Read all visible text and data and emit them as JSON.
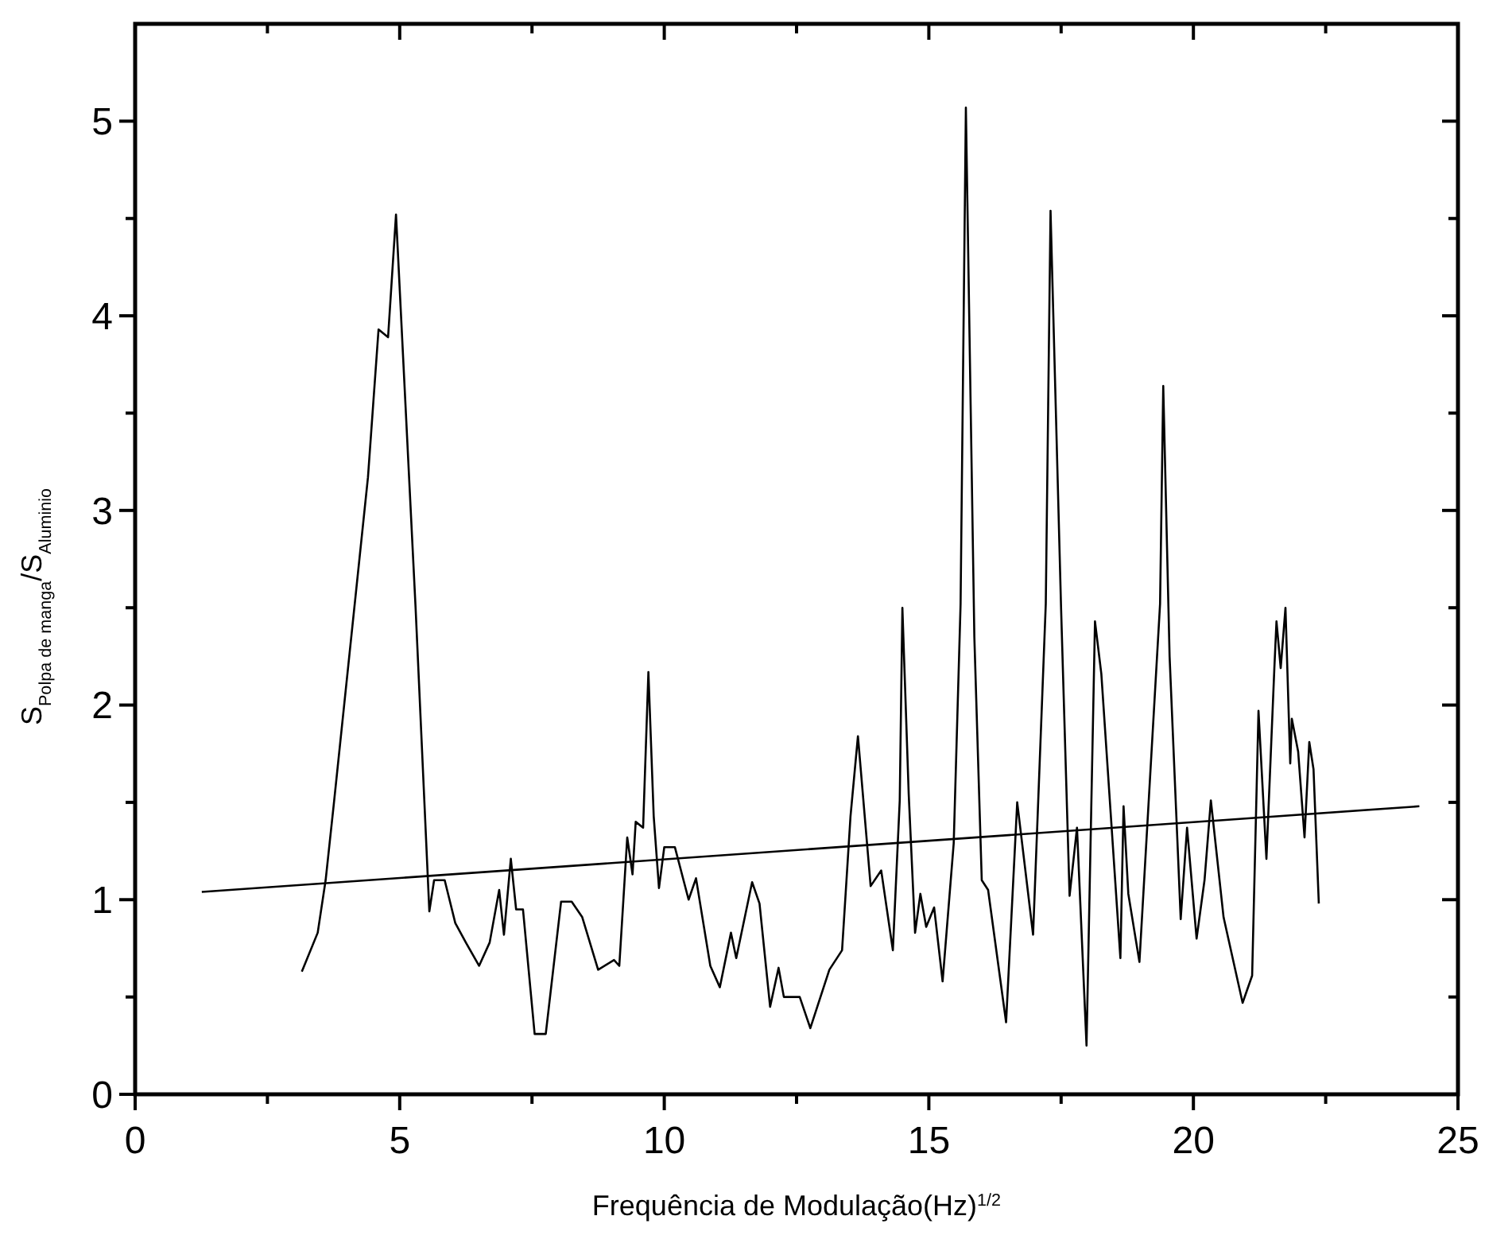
{
  "chart_data": {
    "type": "line",
    "xlabel": "Frequência de Modulação(Hz)$^{1/2}$",
    "ylabel": "S$_{Polpa de manga}$/S$_{Aluminio}$",
    "xlim": [
      0,
      25
    ],
    "ylim": [
      0,
      5.5
    ],
    "xticks": [
      0,
      {
        "value": 2.5,
        "label": null
      },
      5,
      {
        "value": 7.5,
        "label": null
      },
      10,
      {
        "value": 12.5,
        "label": null
      },
      15,
      {
        "value": 17.5,
        "label": null
      },
      20,
      {
        "value": 22.5,
        "label": null
      },
      25
    ],
    "yticks": [
      0,
      {
        "value": 0.5,
        "label": null
      },
      1,
      {
        "value": 1.5,
        "label": null
      },
      2,
      {
        "value": 2.5,
        "label": null
      },
      3,
      {
        "value": 3.5,
        "label": null
      },
      4,
      {
        "value": 4.5,
        "label": null
      },
      5
    ],
    "grid": false,
    "marker": "none",
    "line_style": "solid",
    "series": [
      {
        "color": "#000000",
        "x": [
          3.15,
          3.45,
          3.6,
          3.75,
          4.15,
          4.4,
          4.6,
          4.78,
          4.93,
          5.3,
          5.56,
          5.65,
          5.85,
          6.05,
          6.25,
          6.5,
          6.7,
          6.88,
          6.97,
          7.1,
          7.2,
          7.33,
          7.55,
          7.76,
          8.05,
          8.25,
          8.45,
          8.75,
          9.05,
          9.15,
          9.3,
          9.4,
          9.46,
          9.6,
          9.7,
          9.8,
          9.9,
          10.0,
          10.2,
          10.46,
          10.6,
          10.87,
          11.05,
          11.26,
          11.36,
          11.66,
          11.8,
          12.0,
          12.16,
          12.26,
          12.56,
          12.76,
          13.12,
          13.36,
          13.52,
          13.66,
          13.9,
          14.1,
          14.32,
          14.45,
          14.5,
          14.62,
          14.74,
          14.84,
          14.95,
          15.1,
          15.26,
          15.47,
          15.6,
          15.7,
          15.86,
          16.0,
          16.12,
          16.46,
          16.67,
          16.97,
          17.21,
          17.3,
          17.5,
          17.66,
          17.8,
          17.98,
          18.14,
          18.26,
          18.62,
          18.68,
          18.77,
          18.98,
          19.37,
          19.43,
          19.55,
          19.76,
          19.88,
          20.06,
          20.21,
          20.33,
          20.57,
          20.93,
          21.11,
          21.23,
          21.38,
          21.53,
          21.57,
          21.65,
          21.74,
          21.83,
          21.86,
          21.98,
          22.1,
          22.19,
          22.27,
          22.37
        ],
        "values": [
          0.63,
          0.83,
          1.1,
          1.48,
          2.52,
          3.17,
          3.93,
          3.89,
          4.52,
          2.5,
          0.94,
          1.1,
          1.1,
          0.88,
          0.78,
          0.66,
          0.78,
          1.05,
          0.82,
          1.21,
          0.95,
          0.95,
          0.31,
          0.31,
          0.99,
          0.99,
          0.91,
          0.64,
          0.69,
          0.66,
          1.32,
          1.13,
          1.4,
          1.37,
          2.17,
          1.43,
          1.06,
          1.27,
          1.27,
          1.0,
          1.11,
          0.66,
          0.55,
          0.83,
          0.7,
          1.09,
          0.98,
          0.45,
          0.65,
          0.5,
          0.5,
          0.34,
          0.64,
          0.74,
          1.43,
          1.84,
          1.07,
          1.15,
          0.74,
          1.51,
          2.5,
          1.54,
          0.83,
          1.03,
          0.86,
          0.96,
          0.58,
          1.29,
          2.52,
          5.07,
          2.35,
          1.1,
          1.05,
          0.37,
          1.5,
          0.82,
          2.52,
          4.54,
          2.49,
          1.02,
          1.37,
          0.25,
          2.43,
          2.16,
          0.7,
          1.48,
          1.03,
          0.68,
          2.52,
          3.64,
          2.25,
          0.9,
          1.37,
          0.8,
          1.1,
          1.51,
          0.91,
          0.47,
          0.61,
          1.97,
          1.21,
          2.19,
          2.43,
          2.19,
          2.5,
          1.7,
          1.93,
          1.76,
          1.32,
          1.81,
          1.67,
          0.98
        ]
      },
      {
        "color": "#000000",
        "x": [
          1.26,
          24.27
        ],
        "values": [
          1.04,
          1.48
        ]
      }
    ]
  }
}
